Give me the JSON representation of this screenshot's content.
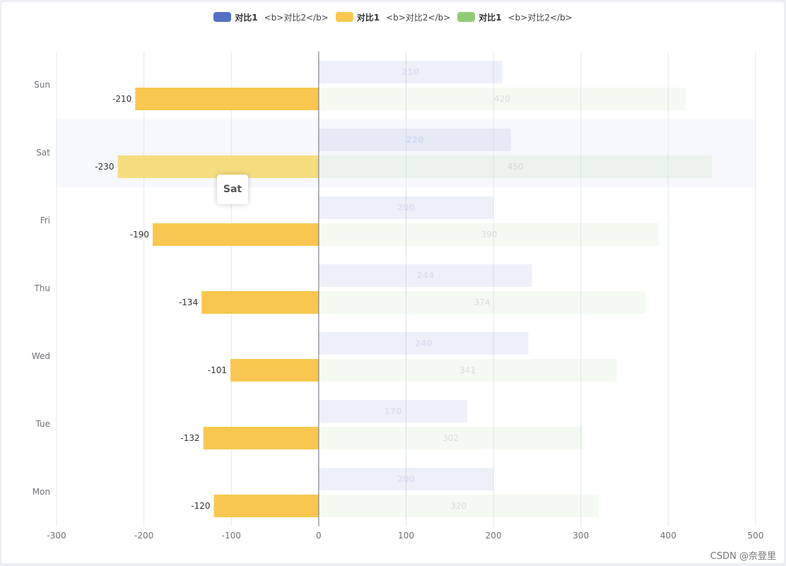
{
  "chart_data": {
    "type": "bar",
    "orientation": "horizontal",
    "categories": [
      "Mon",
      "Tue",
      "Wed",
      "Thu",
      "Fri",
      "Sat",
      "Sun"
    ],
    "series": [
      {
        "name": "对比1",
        "suffix": "<b>对比2</b>",
        "color": "#5470c6",
        "values": [
          200,
          170,
          240,
          244,
          200,
          220,
          210
        ],
        "label_style": "bold-inside",
        "faded": true
      },
      {
        "name": "对比1",
        "suffix": "<b>对比2</b>",
        "color": "#f9c74f",
        "values": [
          -120,
          -132,
          -101,
          -134,
          -190,
          -230,
          -210
        ],
        "label_style": "left",
        "faded": false
      },
      {
        "name": "对比1",
        "suffix": "<b>对比2</b>",
        "color": "#91cc75",
        "values": [
          320,
          302,
          341,
          374,
          390,
          450,
          420
        ],
        "label_style": "inside",
        "faded": true
      }
    ],
    "xlim": [
      -300,
      500
    ],
    "xticks": [
      "-300",
      "-200",
      "-100",
      "0",
      "100",
      "200",
      "300",
      "400",
      "500"
    ],
    "highlighted_category": "Sat",
    "tooltip": "Sat",
    "grid": true,
    "legend_position": "top-center"
  },
  "watermark": "CSDN @奈登里"
}
